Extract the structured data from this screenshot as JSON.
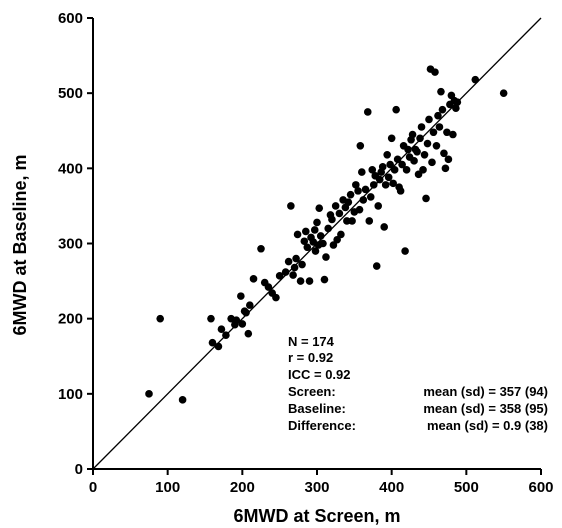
{
  "chart_data": {
    "type": "scatter",
    "xlabel": "6MWD at  Screen, m",
    "ylabel": "6MWD at Baseline, m",
    "xlim": [
      0,
      600
    ],
    "ylim": [
      0,
      600
    ],
    "xticks": [
      "0",
      "100",
      "200",
      "300",
      "400",
      "500",
      "600"
    ],
    "yticks": [
      "0",
      "100",
      "200",
      "300",
      "400",
      "500",
      "600"
    ],
    "grid": false,
    "reference_line": {
      "from": [
        0,
        0
      ],
      "to": [
        600,
        600
      ]
    },
    "stats": {
      "n": "N = 174",
      "r": "r = 0.92",
      "icc": "ICC = 0.92",
      "screen_label": "Screen:",
      "screen_value": "mean (sd) = 357 (94)",
      "baseline_label": "Baseline:",
      "baseline_value": "mean (sd) = 358 (95)",
      "difference_label": "Difference:",
      "difference_value": "mean (sd) =  0.9 (38)"
    },
    "points": [
      [
        75,
        100
      ],
      [
        90,
        200
      ],
      [
        120,
        92
      ],
      [
        158,
        200
      ],
      [
        160,
        168
      ],
      [
        168,
        163
      ],
      [
        172,
        186
      ],
      [
        178,
        178
      ],
      [
        185,
        200
      ],
      [
        190,
        192
      ],
      [
        192,
        198
      ],
      [
        198,
        230
      ],
      [
        200,
        193
      ],
      [
        203,
        210
      ],
      [
        205,
        208
      ],
      [
        208,
        180
      ],
      [
        210,
        218
      ],
      [
        215,
        253
      ],
      [
        225,
        293
      ],
      [
        230,
        248
      ],
      [
        235,
        242
      ],
      [
        240,
        234
      ],
      [
        245,
        228
      ],
      [
        250,
        257
      ],
      [
        258,
        262
      ],
      [
        262,
        276
      ],
      [
        265,
        350
      ],
      [
        268,
        258
      ],
      [
        270,
        268
      ],
      [
        272,
        280
      ],
      [
        274,
        312
      ],
      [
        278,
        250
      ],
      [
        280,
        272
      ],
      [
        283,
        303
      ],
      [
        285,
        316
      ],
      [
        287,
        295
      ],
      [
        290,
        250
      ],
      [
        292,
        308
      ],
      [
        295,
        302
      ],
      [
        297,
        318
      ],
      [
        298,
        290
      ],
      [
        300,
        328
      ],
      [
        302,
        298
      ],
      [
        303,
        347
      ],
      [
        305,
        310
      ],
      [
        308,
        300
      ],
      [
        310,
        252
      ],
      [
        312,
        282
      ],
      [
        315,
        320
      ],
      [
        318,
        338
      ],
      [
        320,
        332
      ],
      [
        322,
        298
      ],
      [
        325,
        350
      ],
      [
        327,
        305
      ],
      [
        330,
        340
      ],
      [
        332,
        312
      ],
      [
        335,
        358
      ],
      [
        338,
        348
      ],
      [
        340,
        330
      ],
      [
        342,
        355
      ],
      [
        345,
        365
      ],
      [
        347,
        330
      ],
      [
        350,
        342
      ],
      [
        352,
        378
      ],
      [
        355,
        370
      ],
      [
        357,
        345
      ],
      [
        358,
        430
      ],
      [
        360,
        395
      ],
      [
        362,
        358
      ],
      [
        365,
        372
      ],
      [
        368,
        475
      ],
      [
        370,
        330
      ],
      [
        372,
        362
      ],
      [
        374,
        398
      ],
      [
        376,
        378
      ],
      [
        378,
        390
      ],
      [
        380,
        270
      ],
      [
        382,
        350
      ],
      [
        384,
        385
      ],
      [
        386,
        395
      ],
      [
        388,
        402
      ],
      [
        390,
        322
      ],
      [
        392,
        378
      ],
      [
        394,
        418
      ],
      [
        396,
        388
      ],
      [
        398,
        405
      ],
      [
        400,
        440
      ],
      [
        402,
        380
      ],
      [
        404,
        398
      ],
      [
        406,
        478
      ],
      [
        408,
        412
      ],
      [
        410,
        375
      ],
      [
        412,
        370
      ],
      [
        414,
        405
      ],
      [
        416,
        430
      ],
      [
        418,
        290
      ],
      [
        420,
        398
      ],
      [
        422,
        425
      ],
      [
        424,
        415
      ],
      [
        426,
        438
      ],
      [
        428,
        445
      ],
      [
        430,
        410
      ],
      [
        432,
        425
      ],
      [
        434,
        422
      ],
      [
        436,
        392
      ],
      [
        438,
        440
      ],
      [
        440,
        455
      ],
      [
        442,
        398
      ],
      [
        444,
        418
      ],
      [
        446,
        360
      ],
      [
        448,
        433
      ],
      [
        450,
        465
      ],
      [
        452,
        532
      ],
      [
        454,
        408
      ],
      [
        456,
        448
      ],
      [
        458,
        528
      ],
      [
        460,
        430
      ],
      [
        462,
        470
      ],
      [
        464,
        455
      ],
      [
        466,
        502
      ],
      [
        468,
        478
      ],
      [
        470,
        420
      ],
      [
        472,
        400
      ],
      [
        474,
        448
      ],
      [
        476,
        412
      ],
      [
        478,
        485
      ],
      [
        480,
        497
      ],
      [
        482,
        445
      ],
      [
        484,
        490
      ],
      [
        486,
        480
      ],
      [
        488,
        488
      ],
      [
        512,
        518
      ],
      [
        550,
        500
      ]
    ]
  }
}
